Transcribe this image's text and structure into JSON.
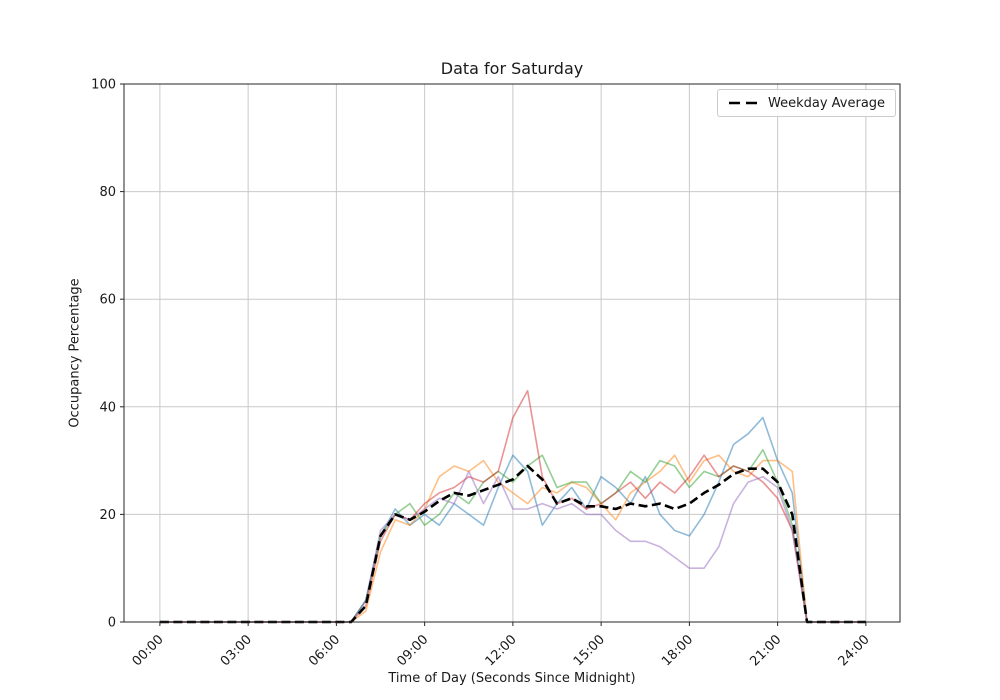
{
  "figure": {
    "background": "#ffffff"
  },
  "chart_data": {
    "type": "line",
    "title": "Data for Saturday",
    "xlabel": "Time of Day (Seconds Since Midnight)",
    "ylabel": "Occupancy Percentage",
    "xlim_hours": [
      -1.22,
      25.16
    ],
    "ylim": [
      0,
      100
    ],
    "grid": true,
    "grid_color": "#c9c9c9",
    "spine_color": "#262626",
    "tick_label_color": "#1a1a1a",
    "xticks": {
      "hours": [
        0,
        3,
        6,
        9,
        12,
        15,
        18,
        21,
        24
      ],
      "labels": [
        "00:00",
        "03:00",
        "06:00",
        "09:00",
        "12:00",
        "15:00",
        "18:00",
        "21:00",
        "24:00"
      ]
    },
    "yticks": {
      "values": [
        0,
        20,
        40,
        60,
        80,
        100
      ],
      "labels": [
        "0",
        "20",
        "40",
        "60",
        "80",
        "100"
      ]
    },
    "x_start_hour": 0,
    "x_step_hours": 0.5,
    "series": [
      {
        "id": "saturday-series-1",
        "color": "#1f77b4",
        "opacity": 0.5,
        "width": 1.6,
        "dash": "",
        "values": [
          0,
          0,
          0,
          0,
          0,
          0,
          0,
          0,
          0,
          0,
          0,
          0,
          0,
          0,
          4,
          16,
          21,
          18,
          20,
          18,
          22,
          20,
          18,
          25,
          31,
          28,
          18,
          22,
          25,
          21,
          27,
          25,
          22,
          27,
          20,
          17,
          16,
          20,
          26,
          33,
          35,
          38,
          30,
          24,
          0,
          0,
          0,
          0,
          0
        ]
      },
      {
        "id": "saturday-series-2",
        "color": "#ff7f0e",
        "opacity": 0.5,
        "width": 1.6,
        "dash": "",
        "values": [
          0,
          0,
          0,
          0,
          0,
          0,
          0,
          0,
          0,
          0,
          0,
          0,
          0,
          0,
          2,
          13,
          19,
          18,
          21,
          27,
          29,
          28,
          30,
          26,
          24,
          22,
          25,
          24,
          26,
          25,
          22,
          19,
          24,
          26,
          28,
          31,
          26,
          30,
          31,
          28,
          27,
          30,
          30,
          28,
          0,
          0,
          0,
          0,
          0
        ]
      },
      {
        "id": "saturday-series-3",
        "color": "#2ca02c",
        "opacity": 0.5,
        "width": 1.6,
        "dash": "",
        "values": [
          0,
          0,
          0,
          0,
          0,
          0,
          0,
          0,
          0,
          0,
          0,
          0,
          0,
          0,
          4,
          16,
          20,
          22,
          18,
          20,
          24,
          22,
          26,
          28,
          26,
          29,
          31,
          25,
          26,
          26,
          22,
          24,
          28,
          26,
          30,
          29,
          25,
          28,
          27,
          29,
          28,
          32,
          26,
          18,
          0,
          0,
          0,
          0,
          0
        ]
      },
      {
        "id": "saturday-series-4",
        "color": "#d62728",
        "opacity": 0.5,
        "width": 1.6,
        "dash": "",
        "values": [
          0,
          0,
          0,
          0,
          0,
          0,
          0,
          0,
          0,
          0,
          0,
          0,
          0,
          0,
          3,
          15,
          20,
          19,
          22,
          24,
          25,
          27,
          26,
          28,
          38,
          43,
          27,
          22,
          23,
          21,
          22,
          24,
          26,
          23,
          26,
          24,
          27,
          31,
          27,
          29,
          28,
          26,
          23,
          17,
          0,
          0,
          0,
          0,
          0
        ]
      },
      {
        "id": "saturday-series-5",
        "color": "#9467bd",
        "opacity": 0.5,
        "width": 1.6,
        "dash": "",
        "values": [
          0,
          0,
          0,
          0,
          0,
          0,
          0,
          0,
          0,
          0,
          0,
          0,
          0,
          0,
          4,
          17,
          20,
          19,
          21,
          23,
          22,
          28,
          22,
          27,
          21,
          21,
          22,
          21,
          22,
          20,
          20,
          17,
          15,
          15,
          14,
          12,
          10,
          10,
          14,
          22,
          26,
          27,
          25,
          17,
          0,
          0,
          0,
          0,
          0
        ]
      },
      {
        "id": "weekday-average",
        "label": "Weekday Average",
        "color": "#000000",
        "opacity": 1,
        "width": 2.6,
        "dash": "9 4.5",
        "values": [
          0,
          0,
          0,
          0,
          0,
          0,
          0,
          0,
          0,
          0,
          0,
          0,
          0,
          0,
          3,
          16,
          20,
          19,
          20.5,
          22.5,
          24,
          23.5,
          24.5,
          25.5,
          26.5,
          29,
          26.5,
          22,
          23,
          21.5,
          21.5,
          21,
          22,
          21.5,
          22,
          21,
          22,
          24,
          25.5,
          27.5,
          28.5,
          28.5,
          26,
          20,
          0,
          0,
          0,
          0,
          0
        ]
      }
    ],
    "legend": {
      "position": "upper right",
      "entries": [
        {
          "label": "Weekday Average",
          "color": "#000000",
          "dash": "11 6",
          "width": 2.6
        }
      ]
    }
  }
}
